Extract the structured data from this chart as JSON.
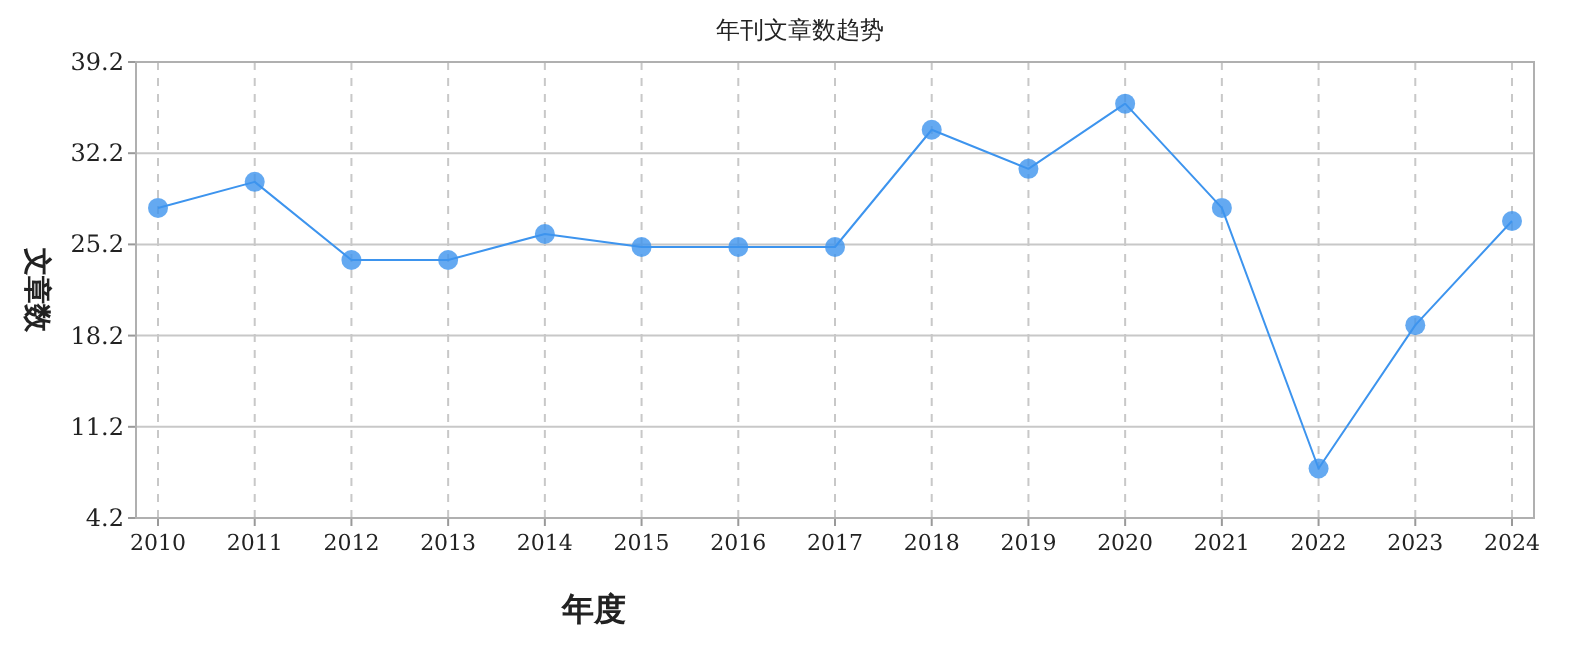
{
  "chart_data": {
    "type": "line",
    "title": "年刊文章数趋势",
    "xlabel": "年度",
    "ylabel": "文章数",
    "categories": [
      "2010",
      "2011",
      "2012",
      "2013",
      "2014",
      "2015",
      "2016",
      "2017",
      "2018",
      "2019",
      "2020",
      "2021",
      "2022",
      "2023",
      "2024"
    ],
    "series": [
      {
        "color": "#3d94ee",
        "values": [
          28,
          30,
          24,
          24,
          26,
          25,
          25,
          25,
          34,
          31,
          36,
          28,
          8,
          19,
          27
        ]
      }
    ],
    "ylim": [
      4.2,
      39.2
    ],
    "yticks": [
      4.2,
      11.2,
      18.2,
      25.2,
      32.2,
      39.2
    ],
    "grid": true,
    "marker": "circle",
    "line_style": "solid"
  }
}
